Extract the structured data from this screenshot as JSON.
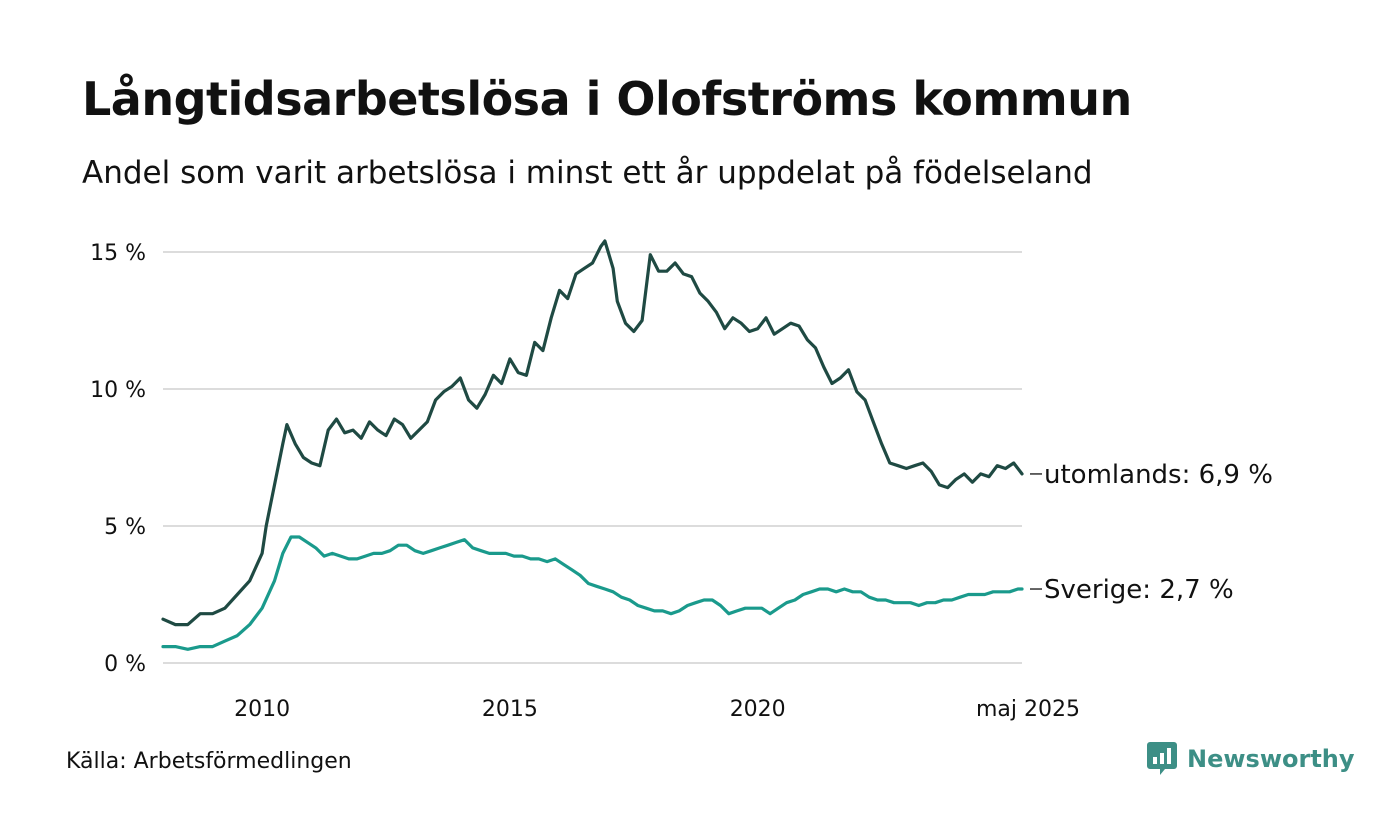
{
  "title": "Långtidsarbetslösa i Olofströms kommun",
  "subtitle": "Andel som varit arbetslösa i minst ett år uppdelat på födelseland",
  "source": "Källa: Arbetsförmedlingen",
  "brand": "Newsworthy",
  "colors": {
    "utomlands": "#1f4a43",
    "sverige": "#1a9a8c",
    "grid": "#dcdcdc",
    "brand": "#3d8f86"
  },
  "chart_data": {
    "type": "line",
    "x_unit": "month",
    "x_range": [
      "2008-01",
      "2025-05"
    ],
    "ylim": [
      0,
      15
    ],
    "y_ticks": [
      {
        "value": 0,
        "label": "0 %"
      },
      {
        "value": 5,
        "label": "5 %"
      },
      {
        "value": 10,
        "label": "10 %"
      },
      {
        "value": 15,
        "label": "15 %"
      }
    ],
    "x_ticks": [
      {
        "date": "2010-01",
        "label": "2010"
      },
      {
        "date": "2015-01",
        "label": "2015"
      },
      {
        "date": "2020-01",
        "label": "2020"
      },
      {
        "date": "2025-05",
        "label": "maj 2025"
      }
    ],
    "grid": "horizontal",
    "series": [
      {
        "key": "utomlands",
        "end_label": "utomlands: 6,9 %",
        "points": [
          [
            "2008-01",
            1.6
          ],
          [
            "2008-04",
            1.4
          ],
          [
            "2008-07",
            1.4
          ],
          [
            "2008-10",
            1.8
          ],
          [
            "2009-01",
            1.8
          ],
          [
            "2009-04",
            2.0
          ],
          [
            "2009-07",
            2.5
          ],
          [
            "2009-10",
            3.0
          ],
          [
            "2010-01",
            4.0
          ],
          [
            "2010-02",
            5.0
          ],
          [
            "2010-04",
            6.5
          ],
          [
            "2010-06",
            8.0
          ],
          [
            "2010-07",
            8.7
          ],
          [
            "2010-09",
            8.0
          ],
          [
            "2010-11",
            7.5
          ],
          [
            "2011-01",
            7.3
          ],
          [
            "2011-03",
            7.2
          ],
          [
            "2011-05",
            8.5
          ],
          [
            "2011-07",
            8.9
          ],
          [
            "2011-09",
            8.4
          ],
          [
            "2011-11",
            8.5
          ],
          [
            "2012-01",
            8.2
          ],
          [
            "2012-03",
            8.8
          ],
          [
            "2012-05",
            8.5
          ],
          [
            "2012-07",
            8.3
          ],
          [
            "2012-09",
            8.9
          ],
          [
            "2012-11",
            8.7
          ],
          [
            "2013-01",
            8.2
          ],
          [
            "2013-03",
            8.5
          ],
          [
            "2013-05",
            8.8
          ],
          [
            "2013-07",
            9.6
          ],
          [
            "2013-09",
            9.9
          ],
          [
            "2013-11",
            10.1
          ],
          [
            "2014-01",
            10.4
          ],
          [
            "2014-03",
            9.6
          ],
          [
            "2014-05",
            9.3
          ],
          [
            "2014-07",
            9.8
          ],
          [
            "2014-09",
            10.5
          ],
          [
            "2014-11",
            10.2
          ],
          [
            "2015-01",
            11.1
          ],
          [
            "2015-03",
            10.6
          ],
          [
            "2015-05",
            10.5
          ],
          [
            "2015-07",
            11.7
          ],
          [
            "2015-09",
            11.4
          ],
          [
            "2015-11",
            12.6
          ],
          [
            "2016-01",
            13.6
          ],
          [
            "2016-03",
            13.3
          ],
          [
            "2016-05",
            14.2
          ],
          [
            "2016-07",
            14.4
          ],
          [
            "2016-09",
            14.6
          ],
          [
            "2016-11",
            15.2
          ],
          [
            "2016-12",
            15.4
          ],
          [
            "2017-02",
            14.4
          ],
          [
            "2017-03",
            13.2
          ],
          [
            "2017-05",
            12.4
          ],
          [
            "2017-07",
            12.1
          ],
          [
            "2017-09",
            12.5
          ],
          [
            "2017-11",
            14.9
          ],
          [
            "2018-01",
            14.3
          ],
          [
            "2018-03",
            14.3
          ],
          [
            "2018-05",
            14.6
          ],
          [
            "2018-07",
            14.2
          ],
          [
            "2018-09",
            14.1
          ],
          [
            "2018-11",
            13.5
          ],
          [
            "2019-01",
            13.2
          ],
          [
            "2019-03",
            12.8
          ],
          [
            "2019-05",
            12.2
          ],
          [
            "2019-07",
            12.6
          ],
          [
            "2019-09",
            12.4
          ],
          [
            "2019-11",
            12.1
          ],
          [
            "2020-01",
            12.2
          ],
          [
            "2020-03",
            12.6
          ],
          [
            "2020-05",
            12.0
          ],
          [
            "2020-07",
            12.2
          ],
          [
            "2020-09",
            12.4
          ],
          [
            "2020-11",
            12.3
          ],
          [
            "2021-01",
            11.8
          ],
          [
            "2021-03",
            11.5
          ],
          [
            "2021-05",
            10.8
          ],
          [
            "2021-07",
            10.2
          ],
          [
            "2021-09",
            10.4
          ],
          [
            "2021-11",
            10.7
          ],
          [
            "2022-01",
            9.9
          ],
          [
            "2022-03",
            9.6
          ],
          [
            "2022-05",
            8.8
          ],
          [
            "2022-07",
            8.0
          ],
          [
            "2022-09",
            7.3
          ],
          [
            "2022-11",
            7.2
          ],
          [
            "2023-01",
            7.1
          ],
          [
            "2023-03",
            7.2
          ],
          [
            "2023-05",
            7.3
          ],
          [
            "2023-07",
            7.0
          ],
          [
            "2023-09",
            6.5
          ],
          [
            "2023-11",
            6.4
          ],
          [
            "2024-01",
            6.7
          ],
          [
            "2024-03",
            6.9
          ],
          [
            "2024-05",
            6.6
          ],
          [
            "2024-07",
            6.9
          ],
          [
            "2024-09",
            6.8
          ],
          [
            "2024-11",
            7.2
          ],
          [
            "2025-01",
            7.1
          ],
          [
            "2025-03",
            7.3
          ],
          [
            "2025-05",
            6.9
          ]
        ]
      },
      {
        "key": "sverige",
        "end_label": "Sverige: 2,7 %",
        "points": [
          [
            "2008-01",
            0.6
          ],
          [
            "2008-04",
            0.6
          ],
          [
            "2008-07",
            0.5
          ],
          [
            "2008-10",
            0.6
          ],
          [
            "2009-01",
            0.6
          ],
          [
            "2009-04",
            0.8
          ],
          [
            "2009-07",
            1.0
          ],
          [
            "2009-10",
            1.4
          ],
          [
            "2010-01",
            2.0
          ],
          [
            "2010-04",
            3.0
          ],
          [
            "2010-06",
            4.0
          ],
          [
            "2010-08",
            4.6
          ],
          [
            "2010-10",
            4.6
          ],
          [
            "2010-12",
            4.4
          ],
          [
            "2011-02",
            4.2
          ],
          [
            "2011-04",
            3.9
          ],
          [
            "2011-06",
            4.0
          ],
          [
            "2011-08",
            3.9
          ],
          [
            "2011-10",
            3.8
          ],
          [
            "2011-12",
            3.8
          ],
          [
            "2012-02",
            3.9
          ],
          [
            "2012-04",
            4.0
          ],
          [
            "2012-06",
            4.0
          ],
          [
            "2012-08",
            4.1
          ],
          [
            "2012-10",
            4.3
          ],
          [
            "2012-12",
            4.3
          ],
          [
            "2013-02",
            4.1
          ],
          [
            "2013-04",
            4.0
          ],
          [
            "2013-06",
            4.1
          ],
          [
            "2013-08",
            4.2
          ],
          [
            "2013-10",
            4.3
          ],
          [
            "2013-12",
            4.4
          ],
          [
            "2014-02",
            4.5
          ],
          [
            "2014-04",
            4.2
          ],
          [
            "2014-06",
            4.1
          ],
          [
            "2014-08",
            4.0
          ],
          [
            "2014-10",
            4.0
          ],
          [
            "2014-12",
            4.0
          ],
          [
            "2015-02",
            3.9
          ],
          [
            "2015-04",
            3.9
          ],
          [
            "2015-06",
            3.8
          ],
          [
            "2015-08",
            3.8
          ],
          [
            "2015-10",
            3.7
          ],
          [
            "2015-12",
            3.8
          ],
          [
            "2016-02",
            3.6
          ],
          [
            "2016-04",
            3.4
          ],
          [
            "2016-06",
            3.2
          ],
          [
            "2016-08",
            2.9
          ],
          [
            "2016-10",
            2.8
          ],
          [
            "2016-12",
            2.7
          ],
          [
            "2017-02",
            2.6
          ],
          [
            "2017-04",
            2.4
          ],
          [
            "2017-06",
            2.3
          ],
          [
            "2017-08",
            2.1
          ],
          [
            "2017-10",
            2.0
          ],
          [
            "2017-12",
            1.9
          ],
          [
            "2018-02",
            1.9
          ],
          [
            "2018-04",
            1.8
          ],
          [
            "2018-06",
            1.9
          ],
          [
            "2018-08",
            2.1
          ],
          [
            "2018-10",
            2.2
          ],
          [
            "2018-12",
            2.3
          ],
          [
            "2019-02",
            2.3
          ],
          [
            "2019-04",
            2.1
          ],
          [
            "2019-06",
            1.8
          ],
          [
            "2019-08",
            1.9
          ],
          [
            "2019-10",
            2.0
          ],
          [
            "2019-12",
            2.0
          ],
          [
            "2020-02",
            2.0
          ],
          [
            "2020-04",
            1.8
          ],
          [
            "2020-06",
            2.0
          ],
          [
            "2020-08",
            2.2
          ],
          [
            "2020-10",
            2.3
          ],
          [
            "2020-12",
            2.5
          ],
          [
            "2021-02",
            2.6
          ],
          [
            "2021-04",
            2.7
          ],
          [
            "2021-06",
            2.7
          ],
          [
            "2021-08",
            2.6
          ],
          [
            "2021-10",
            2.7
          ],
          [
            "2021-12",
            2.6
          ],
          [
            "2022-02",
            2.6
          ],
          [
            "2022-04",
            2.4
          ],
          [
            "2022-06",
            2.3
          ],
          [
            "2022-08",
            2.3
          ],
          [
            "2022-10",
            2.2
          ],
          [
            "2022-12",
            2.2
          ],
          [
            "2023-02",
            2.2
          ],
          [
            "2023-04",
            2.1
          ],
          [
            "2023-06",
            2.2
          ],
          [
            "2023-08",
            2.2
          ],
          [
            "2023-10",
            2.3
          ],
          [
            "2023-12",
            2.3
          ],
          [
            "2024-02",
            2.4
          ],
          [
            "2024-04",
            2.5
          ],
          [
            "2024-06",
            2.5
          ],
          [
            "2024-08",
            2.5
          ],
          [
            "2024-10",
            2.6
          ],
          [
            "2024-12",
            2.6
          ],
          [
            "2025-02",
            2.6
          ],
          [
            "2025-04",
            2.7
          ],
          [
            "2025-05",
            2.7
          ]
        ]
      }
    ]
  }
}
